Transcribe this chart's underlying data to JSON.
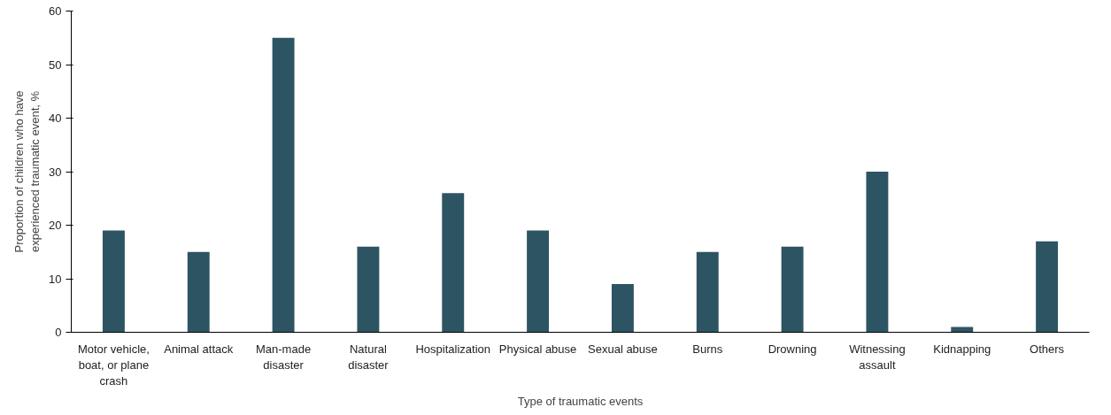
{
  "chart_data": {
    "type": "bar",
    "xlabel": "Type of traumatic events",
    "ylabel": "Proportion of children who have experienced traumatic event, %",
    "categories": [
      "Motor vehicle, boat, or plane crash",
      "Animal attack",
      "Man-made disaster",
      "Natural disaster",
      "Hospitalization",
      "Physical abuse",
      "Sexual abuse",
      "Burns",
      "Drowning",
      "Witnessing assault",
      "Kidnapping",
      "Others"
    ],
    "values": [
      19,
      15,
      55,
      16,
      26,
      19,
      9,
      15,
      16,
      30,
      1,
      17
    ],
    "color": "#2d5462",
    "ylim": [
      0,
      60
    ],
    "yticks": [
      0,
      10,
      20,
      30,
      40,
      50,
      60
    ],
    "grid": false
  }
}
